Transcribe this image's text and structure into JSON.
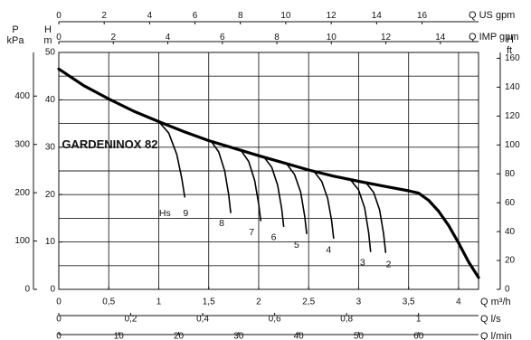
{
  "chart_data": {
    "type": "line",
    "model_label": "GARDENINOX 82",
    "hs_label": "Hs",
    "flow_axes": [
      {
        "id": "q_m3h",
        "label": "Q m³/h",
        "position": "bottom",
        "min": 0,
        "max": 4.2,
        "ticks": [
          {
            "v": 0,
            "t": "0"
          },
          {
            "v": 0.5,
            "t": "0,5"
          },
          {
            "v": 1,
            "t": "1"
          },
          {
            "v": 1.5,
            "t": "1,5"
          },
          {
            "v": 2,
            "t": "2"
          },
          {
            "v": 2.5,
            "t": "2,5"
          },
          {
            "v": 3,
            "t": "3"
          },
          {
            "v": 3.5,
            "t": "3,5"
          },
          {
            "v": 4,
            "t": "4"
          }
        ]
      },
      {
        "id": "q_ls",
        "label": "Q l/s",
        "position": "bottom",
        "min": 0,
        "max": 1.1667,
        "ticks": [
          {
            "v": 0,
            "t": "0"
          },
          {
            "v": 0.2,
            "t": "0,2"
          },
          {
            "v": 0.4,
            "t": "0,4"
          },
          {
            "v": 0.6,
            "t": "0,6"
          },
          {
            "v": 0.8,
            "t": "0,8"
          },
          {
            "v": 1,
            "t": "1"
          }
        ]
      },
      {
        "id": "q_lmin",
        "label": "Q l/min",
        "position": "bottom",
        "min": 0,
        "max": 70,
        "ticks": [
          {
            "v": 0,
            "t": "0"
          },
          {
            "v": 10,
            "t": "10"
          },
          {
            "v": 20,
            "t": "20"
          },
          {
            "v": 30,
            "t": "30"
          },
          {
            "v": 40,
            "t": "40"
          },
          {
            "v": 50,
            "t": "50"
          },
          {
            "v": 60,
            "t": "60"
          }
        ]
      },
      {
        "id": "q_usgpm",
        "label": "Q US gpm",
        "position": "top",
        "min": 0,
        "max": 18.49,
        "ticks": [
          {
            "v": 0,
            "t": "0"
          },
          {
            "v": 2,
            "t": "2"
          },
          {
            "v": 4,
            "t": "4"
          },
          {
            "v": 6,
            "t": "6"
          },
          {
            "v": 8,
            "t": "8"
          },
          {
            "v": 10,
            "t": "10"
          },
          {
            "v": 12,
            "t": "12"
          },
          {
            "v": 14,
            "t": "14"
          },
          {
            "v": 16,
            "t": "16"
          }
        ]
      },
      {
        "id": "q_impgpm",
        "label": "Q IMP gpm",
        "position": "top",
        "min": 0,
        "max": 15.4,
        "ticks": [
          {
            "v": 0,
            "t": "0"
          },
          {
            "v": 2,
            "t": "2"
          },
          {
            "v": 4,
            "t": "4"
          },
          {
            "v": 6,
            "t": "6"
          },
          {
            "v": 8,
            "t": "8"
          },
          {
            "v": 10,
            "t": "10"
          },
          {
            "v": 12,
            "t": "12"
          },
          {
            "v": 14,
            "t": "14"
          }
        ]
      }
    ],
    "head_axes": [
      {
        "id": "p_kpa",
        "label_lines": [
          "P",
          "kPa"
        ],
        "position": "left-outer",
        "min": 0,
        "max": 490.3,
        "ticks": [
          {
            "v": 0,
            "t": "0"
          },
          {
            "v": 100,
            "t": "100"
          },
          {
            "v": 200,
            "t": "200"
          },
          {
            "v": 300,
            "t": "300"
          },
          {
            "v": 400,
            "t": "400"
          }
        ]
      },
      {
        "id": "h_m",
        "label_lines": [
          "H",
          "m"
        ],
        "position": "left-inner",
        "min": 0,
        "max": 50,
        "ticks": [
          {
            "v": 0,
            "t": "0"
          },
          {
            "v": 10,
            "t": "10"
          },
          {
            "v": 20,
            "t": "20"
          },
          {
            "v": 30,
            "t": "30"
          },
          {
            "v": 40,
            "t": "40"
          },
          {
            "v": 50,
            "t": "50"
          }
        ]
      },
      {
        "id": "h_ft",
        "label_lines": [
          "H",
          "ft"
        ],
        "position": "right",
        "min": 0,
        "max": 164.04,
        "ticks": [
          {
            "v": 0,
            "t": "0"
          },
          {
            "v": 20,
            "t": "20"
          },
          {
            "v": 40,
            "t": "40"
          },
          {
            "v": 60,
            "t": "60"
          },
          {
            "v": 80,
            "t": "80"
          },
          {
            "v": 100,
            "t": "100"
          },
          {
            "v": 120,
            "t": "120"
          },
          {
            "v": 140,
            "t": "140"
          },
          {
            "v": 160,
            "t": "160"
          }
        ]
      }
    ],
    "grid": true,
    "series": [
      {
        "name": "GARDENINOX 82",
        "x": [
          0,
          0.25,
          0.5,
          0.75,
          1.0,
          1.25,
          1.5,
          1.75,
          2.0,
          2.25,
          2.5,
          2.75,
          3.0,
          3.25,
          3.5,
          3.6,
          3.7,
          3.8,
          3.9,
          4.0,
          4.1,
          4.2
        ],
        "y": [
          46.5,
          43.0,
          40.2,
          37.6,
          35.4,
          33.3,
          31.4,
          29.8,
          28.2,
          26.7,
          25.2,
          23.9,
          22.8,
          21.8,
          20.8,
          20.3,
          18.8,
          16.5,
          13.5,
          9.8,
          5.8,
          2.5
        ]
      },
      {
        "name": "9",
        "x": [
          1.0,
          1.1,
          1.18,
          1.23,
          1.26
        ],
        "y": [
          35.4,
          33.0,
          28.5,
          23.5,
          19.5
        ]
      },
      {
        "name": "8",
        "x": [
          1.52,
          1.6,
          1.66,
          1.7,
          1.72
        ],
        "y": [
          31.4,
          29.0,
          25.0,
          20.0,
          16.2
        ]
      },
      {
        "name": "7",
        "x": [
          1.82,
          1.9,
          1.96,
          2.0,
          2.02
        ],
        "y": [
          29.4,
          27.0,
          23.0,
          18.0,
          14.5
        ]
      },
      {
        "name": "6",
        "x": [
          2.05,
          2.13,
          2.19,
          2.23,
          2.25
        ],
        "y": [
          28.0,
          25.8,
          22.0,
          17.0,
          13.3
        ]
      },
      {
        "name": "5",
        "x": [
          2.28,
          2.36,
          2.42,
          2.46,
          2.48
        ],
        "y": [
          26.5,
          24.2,
          20.5,
          15.5,
          11.8
        ]
      },
      {
        "name": "4",
        "x": [
          2.55,
          2.63,
          2.69,
          2.73,
          2.75
        ],
        "y": [
          25.0,
          22.8,
          19.2,
          14.5,
          10.8
        ]
      },
      {
        "name": "3",
        "x": [
          2.92,
          3.0,
          3.06,
          3.1,
          3.12
        ],
        "y": [
          23.1,
          21.0,
          17.2,
          12.0,
          8.0
        ]
      },
      {
        "name": "2",
        "x": [
          3.07,
          3.15,
          3.21,
          3.25,
          3.27
        ],
        "y": [
          22.6,
          20.5,
          16.8,
          11.8,
          7.8
        ]
      }
    ],
    "branch_labels": [
      {
        "text": "9",
        "x": 1.27,
        "y": 16.0
      },
      {
        "text": "8",
        "x": 1.63,
        "y": 13.9
      },
      {
        "text": "7",
        "x": 1.93,
        "y": 12.0
      },
      {
        "text": "6",
        "x": 2.15,
        "y": 10.9
      },
      {
        "text": "5",
        "x": 2.38,
        "y": 9.3
      },
      {
        "text": "4",
        "x": 2.7,
        "y": 8.3
      },
      {
        "text": "3",
        "x": 3.04,
        "y": 5.6
      },
      {
        "text": "2",
        "x": 3.3,
        "y": 5.2
      }
    ]
  }
}
